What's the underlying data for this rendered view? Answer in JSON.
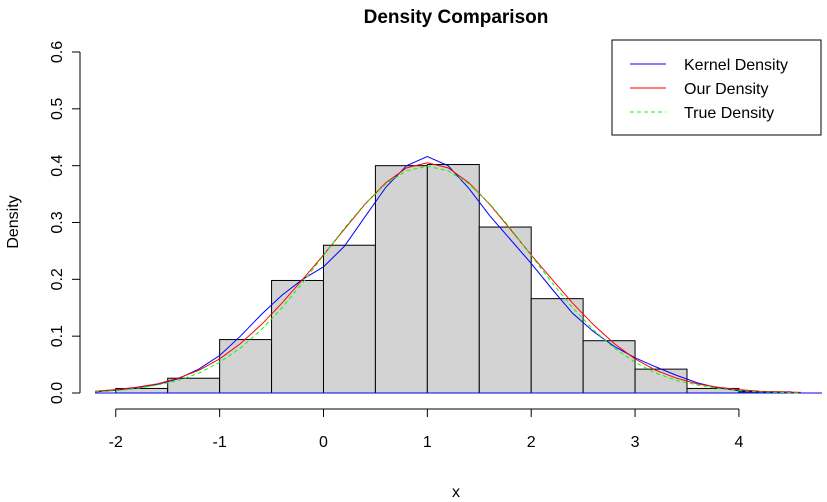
{
  "chart_data": {
    "type": "histogram",
    "title": "Density Comparison",
    "xlabel": "x",
    "ylabel": "Density",
    "xlim": [
      -2.2,
      4.8
    ],
    "ylim": [
      0,
      0.6
    ],
    "x_ticks": [
      -2,
      -1,
      0,
      1,
      2,
      3,
      4
    ],
    "y_ticks": [
      0.0,
      0.1,
      0.2,
      0.3,
      0.4,
      0.5,
      0.6
    ],
    "x_tick_labels": [
      "-2",
      "-1",
      "0",
      "1",
      "2",
      "3",
      "4"
    ],
    "y_tick_labels": [
      "0.0",
      "0.1",
      "0.2",
      "0.3",
      "0.4",
      "0.5",
      "0.6"
    ],
    "grid": false,
    "bar_color": "#d3d3d3",
    "bins": [
      {
        "start": -2.0,
        "end": -1.5,
        "density": 0.008
      },
      {
        "start": -1.5,
        "end": -1.0,
        "density": 0.026
      },
      {
        "start": -1.0,
        "end": -0.5,
        "density": 0.094
      },
      {
        "start": -0.5,
        "end": 0.0,
        "density": 0.198
      },
      {
        "start": 0.0,
        "end": 0.5,
        "density": 0.26
      },
      {
        "start": 0.5,
        "end": 1.0,
        "density": 0.4
      },
      {
        "start": 1.0,
        "end": 1.5,
        "density": 0.402
      },
      {
        "start": 1.5,
        "end": 2.0,
        "density": 0.292
      },
      {
        "start": 2.0,
        "end": 2.5,
        "density": 0.166
      },
      {
        "start": 2.5,
        "end": 3.0,
        "density": 0.092
      },
      {
        "start": 3.0,
        "end": 3.5,
        "density": 0.042
      },
      {
        "start": 3.5,
        "end": 4.0,
        "density": 0.008
      },
      {
        "start": 4.0,
        "end": 4.5,
        "density": 0.002
      }
    ],
    "series": [
      {
        "name": "Kernel Density",
        "color": "#0000ff",
        "style": "solid",
        "x": [
          -2.2,
          -2.0,
          -1.8,
          -1.6,
          -1.4,
          -1.2,
          -1.0,
          -0.8,
          -0.6,
          -0.4,
          -0.2,
          0.0,
          0.2,
          0.4,
          0.6,
          0.8,
          1.0,
          1.2,
          1.4,
          1.6,
          1.8,
          2.0,
          2.2,
          2.4,
          2.6,
          2.8,
          3.0,
          3.2,
          3.4,
          3.6,
          3.8,
          4.0,
          4.2,
          4.4,
          4.6
        ],
        "y": [
          0.002,
          0.005,
          0.009,
          0.015,
          0.025,
          0.042,
          0.066,
          0.1,
          0.138,
          0.172,
          0.2,
          0.222,
          0.258,
          0.31,
          0.362,
          0.4,
          0.416,
          0.4,
          0.36,
          0.312,
          0.27,
          0.228,
          0.183,
          0.14,
          0.108,
          0.082,
          0.062,
          0.046,
          0.031,
          0.018,
          0.009,
          0.004,
          0.002,
          0.001,
          0.0
        ]
      },
      {
        "name": "Our Density",
        "color": "#ff0000",
        "style": "solid",
        "x": [
          -2.2,
          -2.0,
          -1.8,
          -1.6,
          -1.4,
          -1.2,
          -1.0,
          -0.8,
          -0.6,
          -0.4,
          -0.2,
          0.0,
          0.2,
          0.4,
          0.6,
          0.8,
          1.0,
          1.2,
          1.4,
          1.6,
          1.8,
          2.0,
          2.2,
          2.4,
          2.6,
          2.8,
          3.0,
          3.2,
          3.4,
          3.6,
          3.8,
          4.0,
          4.2,
          4.4,
          4.6
        ],
        "y": [
          0.003,
          0.006,
          0.01,
          0.016,
          0.026,
          0.04,
          0.06,
          0.087,
          0.12,
          0.158,
          0.2,
          0.243,
          0.288,
          0.332,
          0.37,
          0.396,
          0.405,
          0.396,
          0.37,
          0.332,
          0.288,
          0.243,
          0.2,
          0.158,
          0.12,
          0.087,
          0.06,
          0.04,
          0.026,
          0.016,
          0.01,
          0.006,
          0.003,
          0.002,
          0.001
        ]
      },
      {
        "name": "True Density",
        "color": "#00ff00",
        "style": "dashed",
        "x": [
          -2.2,
          -2.0,
          -1.8,
          -1.6,
          -1.4,
          -1.2,
          -1.0,
          -0.8,
          -0.6,
          -0.4,
          -0.2,
          0.0,
          0.2,
          0.4,
          0.6,
          0.8,
          1.0,
          1.2,
          1.4,
          1.6,
          1.8,
          2.0,
          2.2,
          2.4,
          2.6,
          2.8,
          3.0,
          3.2,
          3.4,
          3.6,
          3.8,
          4.0,
          4.2,
          4.4,
          4.6
        ],
        "y": [
          0.002,
          0.004,
          0.008,
          0.014,
          0.022,
          0.035,
          0.054,
          0.079,
          0.111,
          0.15,
          0.194,
          0.242,
          0.29,
          0.333,
          0.368,
          0.391,
          0.399,
          0.391,
          0.368,
          0.333,
          0.29,
          0.242,
          0.194,
          0.15,
          0.111,
          0.079,
          0.054,
          0.035,
          0.022,
          0.014,
          0.008,
          0.004,
          0.002,
          0.001,
          0.0
        ]
      }
    ],
    "legend": {
      "position": "top-right",
      "entries": [
        "Kernel Density",
        "Our Density",
        "True Density"
      ]
    }
  }
}
